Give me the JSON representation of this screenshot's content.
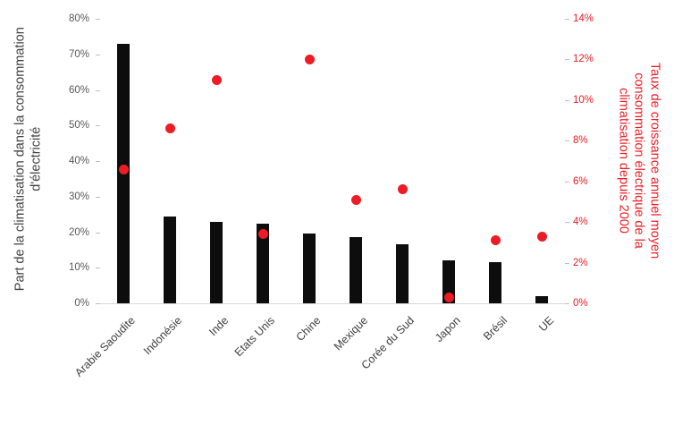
{
  "chart_data": {
    "type": "combo-bar-scatter",
    "categories": [
      "Arabie Saoudite",
      "Indonésie",
      "Inde",
      "Etats Unis",
      "Chine",
      "Mexique",
      "Corée du Sud",
      "Japon",
      "Brésil",
      "UE"
    ],
    "series": [
      {
        "name": "Part de la climatisation dans la consommation d'électricité",
        "type": "bar",
        "axis": "left",
        "color": "#0d0d0d",
        "values": [
          73,
          24.5,
          23,
          22.5,
          19.5,
          18.5,
          16.5,
          12,
          11.5,
          2
        ]
      },
      {
        "name": "Taux de croissance annuel moyen consommation électrique de la climatisation depuis 2000",
        "type": "scatter",
        "axis": "right",
        "color": "#ed1c24",
        "values": [
          6.6,
          8.6,
          11,
          3.4,
          12,
          5.1,
          5.6,
          0.3,
          3.1,
          3.3
        ]
      }
    ],
    "left_axis": {
      "label": "Part de la climatisation dans la consommation d'électricité",
      "min": 0,
      "max": 80,
      "step": 10,
      "tick_labels": [
        "0%",
        "10%",
        "20%",
        "30%",
        "40%",
        "50%",
        "60%",
        "70%",
        "80%"
      ],
      "color": "#404040"
    },
    "right_axis": {
      "label": "Taux de croissance annuel moyen consommation électrique de la climatisation depuis 2000",
      "min": 0,
      "max": 14,
      "step": 2,
      "tick_labels": [
        "0%",
        "2%",
        "4%",
        "6%",
        "8%",
        "10%",
        "12%",
        "14%"
      ],
      "color": "#ed1c24"
    },
    "grid": false,
    "legend": "none",
    "tick_color": "#595959",
    "axis_line_color": "#d9d9d9"
  }
}
